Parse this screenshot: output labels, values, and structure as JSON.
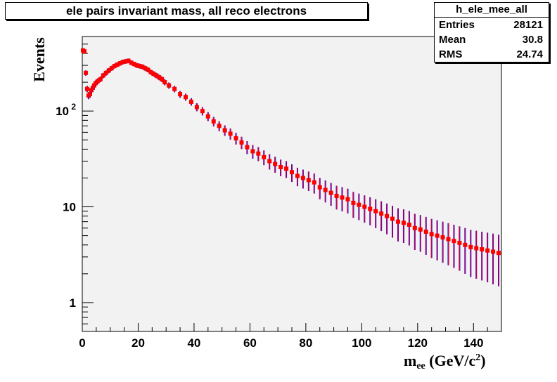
{
  "title": "ele pairs invariant mass, all reco electrons",
  "stats": {
    "name": "h_ele_mee_all",
    "rows": [
      {
        "label": "Entries",
        "value": "28121"
      },
      {
        "label": "Mean",
        "value": "30.8"
      },
      {
        "label": "RMS",
        "value": "24.74"
      }
    ]
  },
  "axis": {
    "ylabel": "Events",
    "xlabel_main": "m",
    "xlabel_sub": "ee",
    "xlabel_unit": " (GeV/c",
    "xlabel_sup": "2",
    "xlabel_close": ")"
  },
  "colors": {
    "frame_bg": "#f2f2f2",
    "marker": "#ff0000",
    "error_bar": "#0000ff"
  },
  "chart_data": {
    "type": "scatter",
    "title": "ele pairs invariant mass, all reco electrons",
    "xlabel": "m_ee (GeV/c^2)",
    "ylabel": "Events",
    "xlim": [
      0,
      150
    ],
    "ylim": [
      0.5,
      600
    ],
    "yscale": "log",
    "x_ticks": [
      0,
      20,
      40,
      60,
      80,
      100,
      120,
      140
    ],
    "y_ticks": [
      {
        "value": 1,
        "label": "1"
      },
      {
        "value": 10,
        "label": "10"
      },
      {
        "value": 100,
        "label": "10",
        "sup": "2"
      }
    ],
    "grid": false,
    "series": [
      {
        "x": [
          0.25,
          0.75,
          1.25,
          1.75,
          2.25,
          2.75,
          3.25,
          3.75,
          4.25,
          4.75,
          5.5,
          6.5,
          7.5,
          8.5,
          9.5,
          10.5,
          11.5,
          12.5,
          13.5,
          14.5,
          15.5,
          16.5,
          17.5,
          18.5,
          19.5,
          20.5,
          21.5,
          22.5,
          23.5,
          24.5,
          25.5,
          26.5,
          27.5,
          28.5,
          29.5,
          31,
          33,
          35,
          37,
          39,
          41,
          43,
          45,
          47,
          49,
          51,
          53,
          55,
          57,
          59,
          61,
          63,
          65,
          67,
          69,
          71,
          73,
          75,
          77,
          79,
          81,
          83,
          85,
          87,
          89,
          91,
          93,
          95,
          97,
          99,
          101,
          103,
          105,
          107,
          109,
          111,
          113,
          115,
          117,
          119,
          121,
          123,
          125,
          127,
          129,
          131,
          133,
          135,
          137,
          139,
          141,
          143,
          145,
          147,
          149
        ],
        "values": [
          430,
          420,
          250,
          170,
          145,
          150,
          165,
          175,
          185,
          195,
          205,
          215,
          235,
          250,
          265,
          280,
          295,
          305,
          315,
          325,
          330,
          335,
          320,
          310,
          300,
          295,
          290,
          280,
          270,
          255,
          245,
          235,
          225,
          215,
          200,
          185,
          170,
          150,
          140,
          125,
          110,
          100,
          88,
          78,
          70,
          63,
          58,
          52,
          47,
          42,
          38,
          36,
          33,
          30,
          28,
          26,
          25,
          23,
          21,
          20,
          19,
          18,
          16,
          15,
          14,
          13,
          12.5,
          12,
          11,
          10.5,
          10,
          9.5,
          9,
          8.5,
          8,
          7.5,
          7,
          6.8,
          6.5,
          6,
          5.8,
          5.5,
          5.2,
          5,
          4.8,
          4.6,
          4.4,
          4.2,
          4,
          3.8,
          3.7,
          3.6,
          3.5,
          3.4,
          3.3
        ]
      }
    ]
  }
}
